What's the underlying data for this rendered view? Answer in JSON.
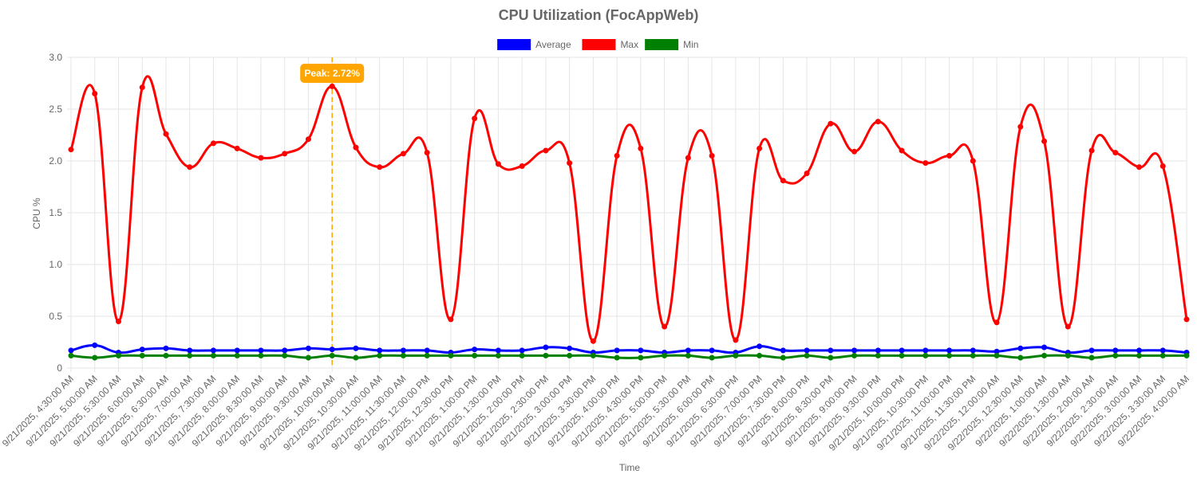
{
  "chart_data": {
    "type": "line",
    "title": "CPU Utilization (FocAppWeb)",
    "xlabel": "Time",
    "ylabel": "CPU %",
    "ylim": [
      0,
      3.0
    ],
    "yticks": [
      "0",
      "0.5",
      "1.0",
      "1.5",
      "2.0",
      "2.5",
      "3.0"
    ],
    "grid": true,
    "legend_position": "top",
    "categories": [
      "9/21/2025, 4:30:00 AM",
      "9/21/2025, 5:00:00 AM",
      "9/21/2025, 5:30:00 AM",
      "9/21/2025, 6:00:00 AM",
      "9/21/2025, 6:30:00 AM",
      "9/21/2025, 7:00:00 AM",
      "9/21/2025, 7:30:00 AM",
      "9/21/2025, 8:00:00 AM",
      "9/21/2025, 8:30:00 AM",
      "9/21/2025, 9:00:00 AM",
      "9/21/2025, 9:30:00 AM",
      "9/21/2025, 10:00:00 AM",
      "9/21/2025, 10:30:00 AM",
      "9/21/2025, 11:00:00 AM",
      "9/21/2025, 11:30:00 AM",
      "9/21/2025, 12:00:00 PM",
      "9/21/2025, 12:30:00 PM",
      "9/21/2025, 1:00:00 PM",
      "9/21/2025, 1:30:00 PM",
      "9/21/2025, 2:00:00 PM",
      "9/21/2025, 2:30:00 PM",
      "9/21/2025, 3:00:00 PM",
      "9/21/2025, 3:30:00 PM",
      "9/21/2025, 4:00:00 PM",
      "9/21/2025, 4:30:00 PM",
      "9/21/2025, 5:00:00 PM",
      "9/21/2025, 5:30:00 PM",
      "9/21/2025, 6:00:00 PM",
      "9/21/2025, 6:30:00 PM",
      "9/21/2025, 7:00:00 PM",
      "9/21/2025, 7:30:00 PM",
      "9/21/2025, 8:00:00 PM",
      "9/21/2025, 8:30:00 PM",
      "9/21/2025, 9:00:00 PM",
      "9/21/2025, 9:30:00 PM",
      "9/21/2025, 10:00:00 PM",
      "9/21/2025, 10:30:00 PM",
      "9/21/2025, 11:00:00 PM",
      "9/21/2025, 11:30:00 PM",
      "9/22/2025, 12:00:00 AM",
      "9/22/2025, 12:30:00 AM",
      "9/22/2025, 1:00:00 AM",
      "9/22/2025, 1:30:00 AM",
      "9/22/2025, 2:00:00 AM",
      "9/22/2025, 2:30:00 AM",
      "9/22/2025, 3:00:00 AM",
      "9/22/2025, 3:30:00 AM",
      "9/22/2025, 4:00:00 AM"
    ],
    "series": [
      {
        "name": "Average",
        "color": "#0000ff",
        "values": [
          0.17,
          0.22,
          0.15,
          0.18,
          0.19,
          0.17,
          0.17,
          0.17,
          0.17,
          0.17,
          0.19,
          0.18,
          0.19,
          0.17,
          0.17,
          0.17,
          0.15,
          0.18,
          0.17,
          0.17,
          0.2,
          0.19,
          0.15,
          0.17,
          0.17,
          0.15,
          0.17,
          0.17,
          0.15,
          0.21,
          0.17,
          0.17,
          0.17,
          0.17,
          0.17,
          0.17,
          0.17,
          0.17,
          0.17,
          0.16,
          0.19,
          0.2,
          0.15,
          0.17,
          0.17,
          0.17,
          0.17,
          0.15
        ]
      },
      {
        "name": "Max",
        "color": "#ff0000",
        "values": [
          2.11,
          2.65,
          0.45,
          2.71,
          2.26,
          1.94,
          2.17,
          2.12,
          2.03,
          2.07,
          2.21,
          2.72,
          2.13,
          1.94,
          2.07,
          2.08,
          0.47,
          2.41,
          1.97,
          1.95,
          2.1,
          1.98,
          0.26,
          2.05,
          2.12,
          0.4,
          2.03,
          2.05,
          0.27,
          2.12,
          1.81,
          1.88,
          2.36,
          2.09,
          2.38,
          2.1,
          1.98,
          2.05,
          2.0,
          0.44,
          2.33,
          2.19,
          0.4,
          2.1,
          2.08,
          1.94,
          1.95,
          0.47
        ]
      },
      {
        "name": "Min",
        "color": "#008000",
        "values": [
          0.12,
          0.1,
          0.12,
          0.12,
          0.12,
          0.12,
          0.12,
          0.12,
          0.12,
          0.12,
          0.1,
          0.12,
          0.1,
          0.12,
          0.12,
          0.12,
          0.12,
          0.12,
          0.12,
          0.12,
          0.12,
          0.12,
          0.12,
          0.1,
          0.1,
          0.12,
          0.12,
          0.1,
          0.12,
          0.12,
          0.1,
          0.12,
          0.1,
          0.12,
          0.12,
          0.12,
          0.12,
          0.12,
          0.12,
          0.12,
          0.1,
          0.12,
          0.12,
          0.1,
          0.12,
          0.12,
          0.12,
          0.12
        ]
      }
    ],
    "annotation": {
      "label": "Peak: 2.72%",
      "category_index": 11,
      "color": "#ffa500"
    }
  }
}
